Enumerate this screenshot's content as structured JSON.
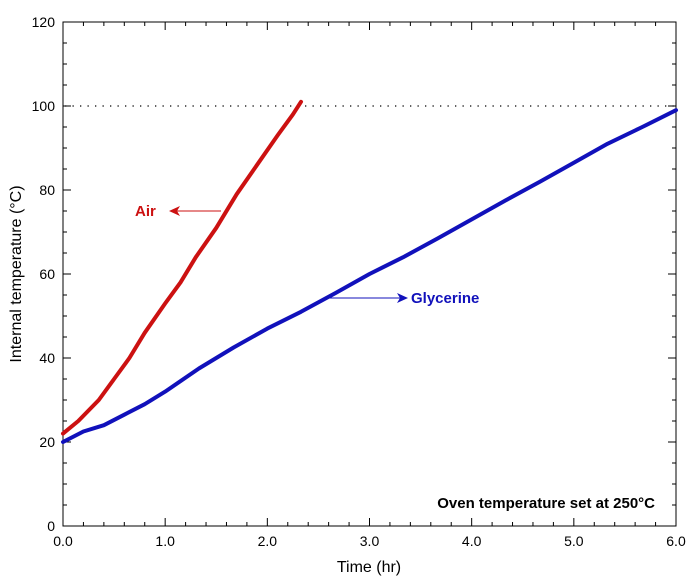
{
  "chart_data": {
    "type": "line",
    "title": "",
    "xlabel": "Time (hr)",
    "ylabel": "Internal temperature (°C)",
    "xlim": [
      0,
      6.0
    ],
    "ylim": [
      0,
      120
    ],
    "x_ticks": [
      "0.0",
      "1.0",
      "2.0",
      "3.0",
      "4.0",
      "5.0",
      "6.0"
    ],
    "y_ticks": [
      "0",
      "20",
      "40",
      "60",
      "80",
      "100",
      "120"
    ],
    "grid": false,
    "reference_line": {
      "y": 100,
      "style": "dotted"
    },
    "annotation": "Oven temperature set at 250°C",
    "series": [
      {
        "name": "Air",
        "color": "#cc1111",
        "x": [
          0,
          0.15,
          0.35,
          0.5,
          0.65,
          0.8,
          1.0,
          1.15,
          1.3,
          1.5,
          1.7,
          1.9,
          2.1,
          2.25,
          2.33
        ],
        "y": [
          22,
          25,
          30,
          35,
          40,
          46,
          53,
          58,
          64,
          71,
          79,
          86,
          93,
          98,
          101
        ]
      },
      {
        "name": "Glycerine",
        "color": "#1111bb",
        "x": [
          0,
          0.2,
          0.4,
          0.6,
          0.8,
          1.0,
          1.33,
          1.67,
          2.0,
          2.33,
          2.67,
          3.0,
          3.33,
          3.67,
          4.0,
          4.33,
          4.67,
          5.0,
          5.33,
          5.67,
          6.0
        ],
        "y": [
          20,
          22.5,
          24,
          26.5,
          29,
          32,
          37.5,
          42.5,
          47,
          51,
          55.5,
          60,
          64,
          68.5,
          73,
          77.5,
          82,
          86.5,
          91,
          95,
          99
        ]
      }
    ]
  }
}
